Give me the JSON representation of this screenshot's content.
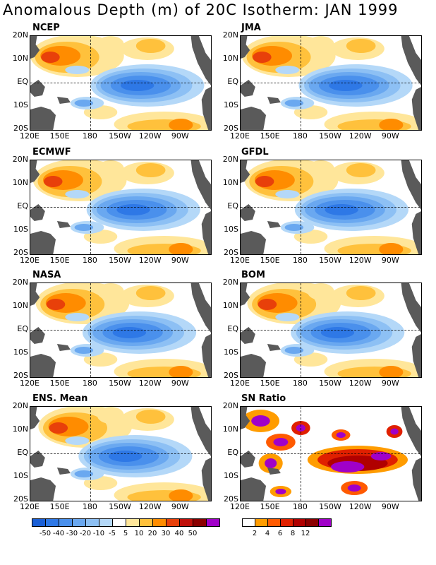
{
  "title": "Anomalous Depth (m) of 20C Isotherm: JAN 1999",
  "lat_labels": [
    "20N",
    "10N",
    "EQ",
    "10S",
    "20S"
  ],
  "lon_labels": [
    "120E",
    "150E",
    "180",
    "150W",
    "120W",
    "90W"
  ],
  "panels": [
    {
      "name": "NCEP"
    },
    {
      "name": "JMA"
    },
    {
      "name": "ECMWF"
    },
    {
      "name": "GFDL"
    },
    {
      "name": "NASA"
    },
    {
      "name": "BOM"
    },
    {
      "name": "ENS. Mean"
    },
    {
      "name": "SN Ratio"
    }
  ],
  "anomaly_colorbar": {
    "labels": [
      "-50",
      "-40",
      "-30",
      "-20",
      "-10",
      "-5",
      "5",
      "10",
      "20",
      "30",
      "40",
      "50"
    ],
    "colors": [
      "#1a5fd6",
      "#2e78e6",
      "#4a90ec",
      "#6aa8f0",
      "#8dc0f4",
      "#b4d8f8",
      "#ffffff",
      "#ffe69a",
      "#ffc13c",
      "#ff8c00",
      "#e8400a",
      "#c0100a",
      "#8a0000",
      "#a000c8"
    ]
  },
  "sn_colorbar": {
    "labels": [
      "2",
      "4",
      "6",
      "8",
      "12"
    ],
    "colors": [
      "#ffffff",
      "#ff9c00",
      "#ff5a00",
      "#e02000",
      "#b00000",
      "#8a0000",
      "#a000c8"
    ]
  }
}
